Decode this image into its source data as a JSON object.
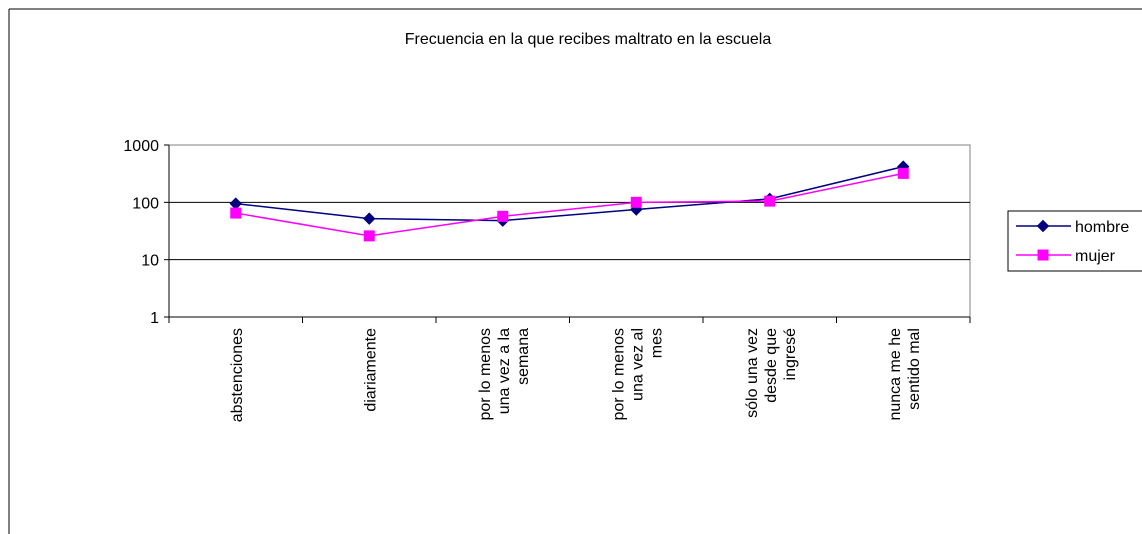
{
  "chart_data": {
    "type": "line",
    "title": "Frecuencia en la que recibes maltrato en la escuela",
    "xlabel": "",
    "ylabel": "",
    "y_scale": "log",
    "ylim": [
      1,
      1000
    ],
    "y_ticks": [
      "1",
      "10",
      "100",
      "1000"
    ],
    "y_tick_values": [
      1,
      10,
      100,
      1000
    ],
    "grid": "horizontal",
    "legend_position": "right",
    "categories": [
      [
        "abstenciones"
      ],
      [
        "diariamente"
      ],
      [
        "por lo menos",
        "una vez a la",
        "semana"
      ],
      [
        "por lo menos",
        "una vez al",
        "mes"
      ],
      [
        "sólo una vez",
        "desde que",
        "ingresé"
      ],
      [
        "nunca me he",
        "sentido mal"
      ]
    ],
    "series": [
      {
        "name": "hombre",
        "color": "#000080",
        "marker": "diamond",
        "values": [
          95,
          52,
          48,
          75,
          115,
          420
        ]
      },
      {
        "name": "mujer",
        "color": "#FF00FF",
        "marker": "square",
        "values": [
          65,
          26,
          57,
          100,
          105,
          320
        ]
      }
    ]
  }
}
